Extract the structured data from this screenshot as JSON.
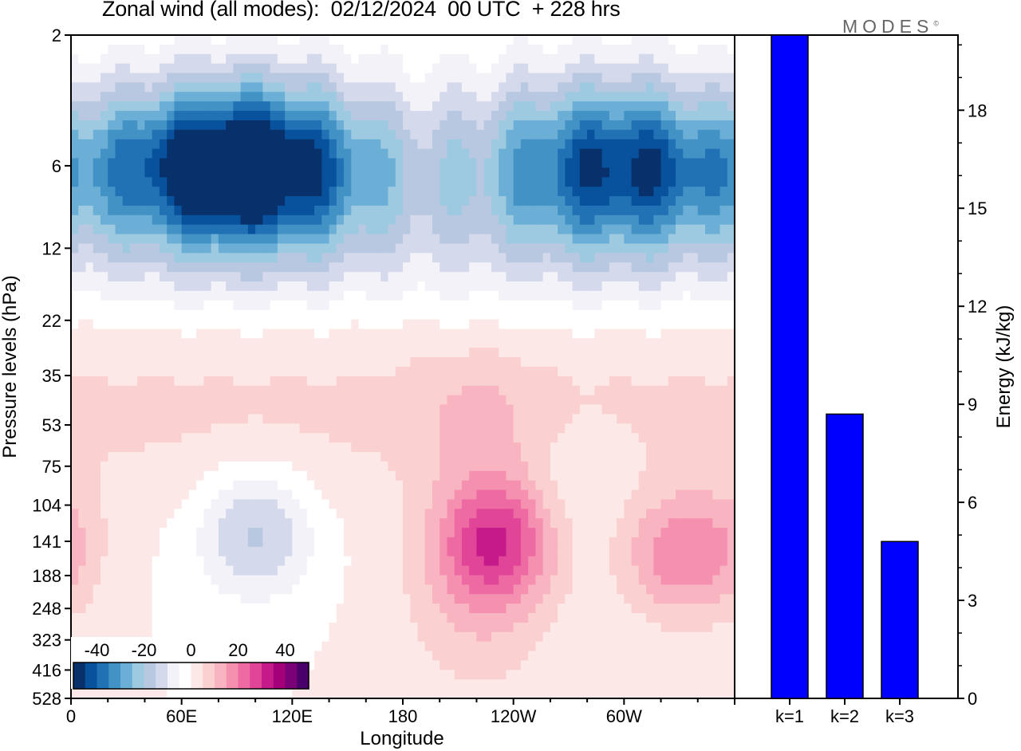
{
  "title": "Zonal wind (all modes):  02/12/2024  00 UTC  + 228 hrs",
  "logo": "MODES",
  "logo_mark": "©",
  "colors": {
    "negative_strong": "#08519c",
    "negative_mid": "#4292c6",
    "negative_weak": "#c6dbef",
    "neutral": "#ffffff",
    "positive_weak": "#fcdada",
    "positive_mid": "#f07db0",
    "positive_strong": "#a3007a",
    "bar": "#0000ff"
  },
  "chart_data": [
    {
      "type": "heatmap",
      "title": "Zonal wind (all modes):  02/12/2024  00 UTC  + 228 hrs",
      "xlabel": "Longitude",
      "ylabel": "Pressure levels (hPa)",
      "x_ticks": [
        "0",
        "60E",
        "120E",
        "180",
        "120W",
        "60W"
      ],
      "y_ticks": [
        "2",
        "6",
        "12",
        "22",
        "35",
        "53",
        "75",
        "104",
        "141",
        "188",
        "248",
        "323",
        "416",
        "528"
      ],
      "colorbar": {
        "ticks": [
          "-40",
          "-20",
          "0",
          "20",
          "40"
        ],
        "range": [
          -50,
          50
        ],
        "colors": [
          "#08306b",
          "#08519c",
          "#2171b5",
          "#4292c6",
          "#6baed6",
          "#9ecae1",
          "#b8c8e0",
          "#d4d9ec",
          "#f2f2f8",
          "#ffffff",
          "#fde8e8",
          "#fbd0d0",
          "#f8b4c0",
          "#f590b0",
          "#ee6aa2",
          "#e14598",
          "#c51b8a",
          "#a3007a",
          "#7a0177",
          "#49006a"
        ]
      },
      "features": [
        {
          "lon": 105,
          "level": 6,
          "value": -35
        },
        {
          "lon": 60,
          "level": 6,
          "value": -28
        },
        {
          "lon": 310,
          "level": 6,
          "value": -32
        },
        {
          "lon": 100,
          "level": 130,
          "value": -28
        },
        {
          "lon": 230,
          "level": 140,
          "value": 44
        },
        {
          "lon": 330,
          "level": 160,
          "value": 30
        },
        {
          "lon": 220,
          "level": 50,
          "value": 10
        },
        {
          "lon": 275,
          "level": 85,
          "value": -6
        }
      ]
    },
    {
      "type": "bar",
      "categories": [
        "k=1",
        "k=2",
        "k=3"
      ],
      "values": [
        20.3,
        8.7,
        4.8
      ],
      "ylabel": "Energy (kJ/kg)",
      "y_ticks": [
        "0",
        "3",
        "6",
        "9",
        "12",
        "15",
        "18"
      ],
      "ylim": [
        0,
        20.3
      ]
    }
  ]
}
